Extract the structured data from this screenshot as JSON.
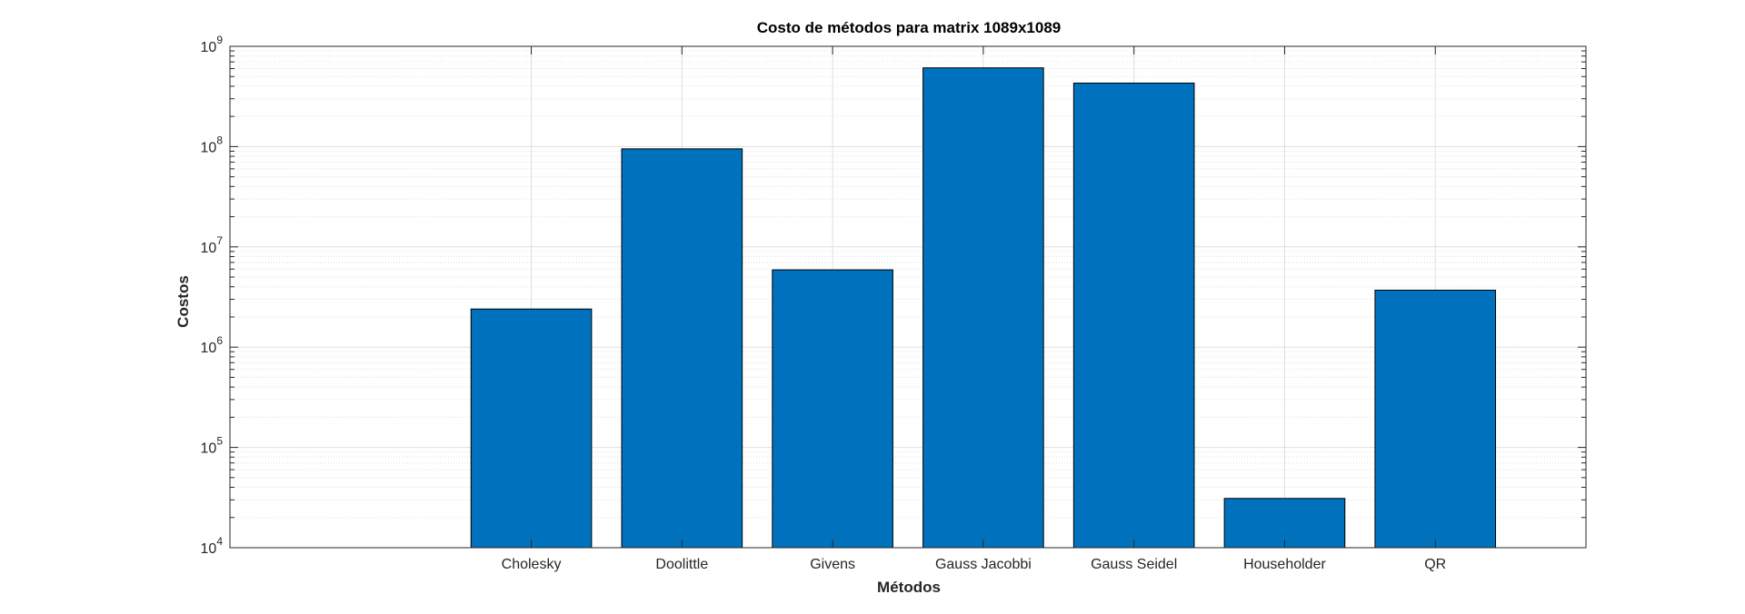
{
  "chart_data": {
    "type": "bar",
    "title": "Costo de métodos para matrix 1089x1089",
    "xlabel": "Métodos",
    "ylabel": "Costos",
    "yscale": "log",
    "ylim": [
      10000,
      1000000000
    ],
    "grid": true,
    "minor_grid": true,
    "categories": [
      "Cholesky",
      "Doolittle",
      "Givens",
      "Gauss Jacobbi",
      "Gauss Seidel",
      "Householder",
      "QR"
    ],
    "values": [
      2400000,
      95000000,
      5900000,
      610000000,
      430000000,
      31000,
      3700000
    ],
    "ytick_base": "10",
    "yticks": [
      {
        "value": 10000,
        "exponent": "4"
      },
      {
        "value": 100000,
        "exponent": "5"
      },
      {
        "value": 1000000,
        "exponent": "6"
      },
      {
        "value": 10000000,
        "exponent": "7"
      },
      {
        "value": 100000000,
        "exponent": "8"
      },
      {
        "value": 1000000000,
        "exponent": "9"
      }
    ],
    "colors": {
      "bar": "#0072BD",
      "bar_edge": "#000000",
      "grid": "#dfdfdf",
      "axis": "#262626"
    }
  }
}
